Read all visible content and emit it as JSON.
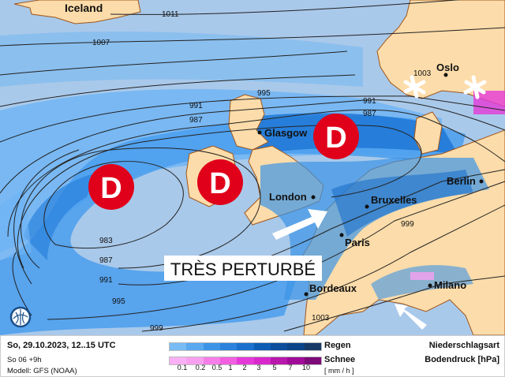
{
  "map": {
    "countries": [
      "Iceland"
    ],
    "cities": [
      "Oslo",
      "Glasgow",
      "London",
      "Bruxelles",
      "Berlin",
      "Paris",
      "Bordeaux",
      "Milano"
    ],
    "isobar_labels": [
      "1011",
      "1007",
      "995",
      "991",
      "987",
      "1003",
      "991",
      "987",
      "983",
      "987",
      "991",
      "995",
      "999",
      "999",
      "1003"
    ],
    "low_symbol": "D",
    "banner": "TRÈS PERTURBÉ",
    "colors": {
      "sea": "#a9c9ea",
      "land": "#fcdcaa",
      "low": "#e0001a",
      "border": "#a0561a"
    }
  },
  "legend": {
    "datetime": "So, 29.10.2023, 12..15 UTC",
    "run": "So 06 +9h",
    "model": "Modell: GFS (NOAA)",
    "rain_label": "Regen",
    "snow_label": "Schnee",
    "unit": "[ mm / h ]",
    "ticks": [
      "0.1",
      "0.2",
      "0.5",
      "1",
      "2",
      "3",
      "5",
      "7",
      "10"
    ],
    "title1": "Niederschlagsart",
    "title2": "Bodendruck [hPa]",
    "rain_colors": [
      "#78bbf5",
      "#5aa8f0",
      "#3c94e6",
      "#2a82dc",
      "#1a70cc",
      "#0d5cb4",
      "#0a4e9c",
      "#0a4488",
      "#163a66"
    ],
    "snow_colors": [
      "#fbb0f5",
      "#f8a0f0",
      "#f67ee8",
      "#f060e0",
      "#e43ad8",
      "#d828cc",
      "#b818ac",
      "#a00c98",
      "#7c0a78"
    ]
  }
}
